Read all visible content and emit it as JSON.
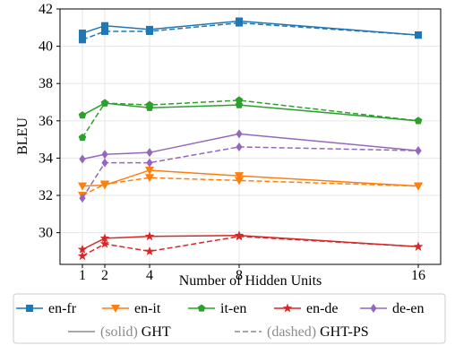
{
  "chart_data": {
    "type": "line",
    "title": "",
    "xlabel": "Number of Hidden Units",
    "ylabel": "BLEU",
    "x": [
      1,
      2,
      4,
      8,
      16
    ],
    "xticks": [
      "1",
      "2",
      "4",
      "8",
      "16"
    ],
    "xlim": [
      0,
      17
    ],
    "ylim": [
      28.3,
      42
    ],
    "yticks": [
      30,
      32,
      34,
      36,
      38,
      40,
      42
    ],
    "grid": true,
    "legend_position": "bottom",
    "series": [
      {
        "name": "en-fr",
        "color": "#1f77b4",
        "marker": "square",
        "style": "solid",
        "values": [
          40.7,
          41.1,
          40.9,
          41.35,
          40.6
        ]
      },
      {
        "name": "en-fr",
        "color": "#1f77b4",
        "marker": "square",
        "style": "dashed",
        "values": [
          40.35,
          40.8,
          40.8,
          41.25,
          40.6
        ]
      },
      {
        "name": "en-it",
        "color": "#ff7f0e",
        "marker": "triangle-down",
        "style": "solid",
        "values": [
          32.5,
          32.55,
          33.35,
          33.05,
          32.5
        ]
      },
      {
        "name": "en-it",
        "color": "#ff7f0e",
        "marker": "triangle-down",
        "style": "dashed",
        "values": [
          32.0,
          32.6,
          32.95,
          32.8,
          32.5
        ]
      },
      {
        "name": "it-en",
        "color": "#2ca02c",
        "marker": "pentagon",
        "style": "solid",
        "values": [
          36.3,
          36.95,
          36.7,
          36.85,
          36.0
        ]
      },
      {
        "name": "it-en",
        "color": "#2ca02c",
        "marker": "pentagon",
        "style": "dashed",
        "values": [
          35.1,
          36.95,
          36.85,
          37.1,
          36.0
        ]
      },
      {
        "name": "en-de",
        "color": "#d62728",
        "marker": "star",
        "style": "solid",
        "values": [
          29.1,
          29.7,
          29.8,
          29.85,
          29.25
        ]
      },
      {
        "name": "en-de",
        "color": "#d62728",
        "marker": "star",
        "style": "dashed",
        "values": [
          28.75,
          29.4,
          29.0,
          29.8,
          29.25
        ]
      },
      {
        "name": "de-en",
        "color": "#9467bd",
        "marker": "diamond",
        "style": "solid",
        "values": [
          33.95,
          34.2,
          34.3,
          35.3,
          34.4
        ]
      },
      {
        "name": "de-en",
        "color": "#9467bd",
        "marker": "diamond",
        "style": "dashed",
        "values": [
          31.85,
          33.75,
          33.75,
          34.6,
          34.4
        ]
      }
    ],
    "legend": {
      "entries": [
        {
          "label": "en-fr",
          "color": "#1f77b4",
          "marker": "square"
        },
        {
          "label": "en-it",
          "color": "#ff7f0e",
          "marker": "triangle-down"
        },
        {
          "label": "it-en",
          "color": "#2ca02c",
          "marker": "pentagon"
        },
        {
          "label": "en-de",
          "color": "#d62728",
          "marker": "star"
        },
        {
          "label": "de-en",
          "color": "#9467bd",
          "marker": "diamond"
        }
      ],
      "style_entries": [
        {
          "prefix": "(solid)",
          "label": "GHT",
          "style": "solid"
        },
        {
          "prefix": "(dashed)",
          "label": "GHT-PS",
          "style": "dashed"
        }
      ]
    }
  }
}
